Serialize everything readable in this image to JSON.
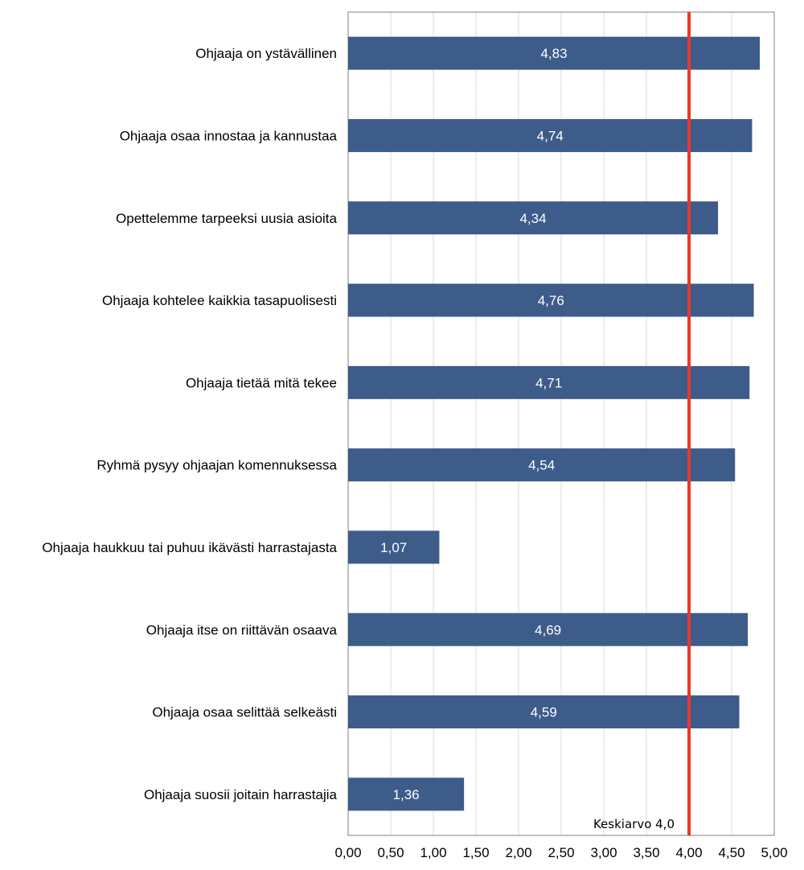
{
  "chart_data": {
    "type": "bar",
    "orientation": "horizontal",
    "categories": [
      "Ohjaaja on ystävällinen",
      "Ohjaaja osaa innostaa ja kannustaa",
      "Opettelemme tarpeeksi uusia asioita",
      "Ohjaaja kohtelee kaikkia tasapuolisesti",
      "Ohjaaja tietää mitä tekee",
      "Ryhmä pysyy ohjaajan komennuksessa",
      "Ohjaaja haukkuu tai puhuu ikävästi harrastajasta",
      "Ohjaaja itse on riittävän osaava",
      "Ohjaaja osaa selittää selkeästi",
      "Ohjaaja suosii joitain harrastajia"
    ],
    "values": [
      4.83,
      4.74,
      4.34,
      4.76,
      4.71,
      4.54,
      1.07,
      4.69,
      4.59,
      1.36
    ],
    "value_labels": [
      "4,83",
      "4,74",
      "4,34",
      "4,76",
      "4,71",
      "4,54",
      "1,07",
      "4,69",
      "4,59",
      "1,36"
    ],
    "xlim": [
      0,
      5
    ],
    "x_ticks": [
      0,
      0.5,
      1,
      1.5,
      2,
      2.5,
      3,
      3.5,
      4,
      4.5,
      5
    ],
    "x_tick_labels": [
      "0,00",
      "0,50",
      "1,00",
      "1,50",
      "2,00",
      "2,50",
      "3,00",
      "3,50",
      "4,00",
      "4,50",
      "5,00"
    ],
    "reference_line": {
      "value": 4.0,
      "label": "Keskiarvo 4,0",
      "color": "#e8392b"
    },
    "bar_color": "#3e5c8a",
    "grid": true,
    "title": "",
    "xlabel": "",
    "ylabel": ""
  }
}
